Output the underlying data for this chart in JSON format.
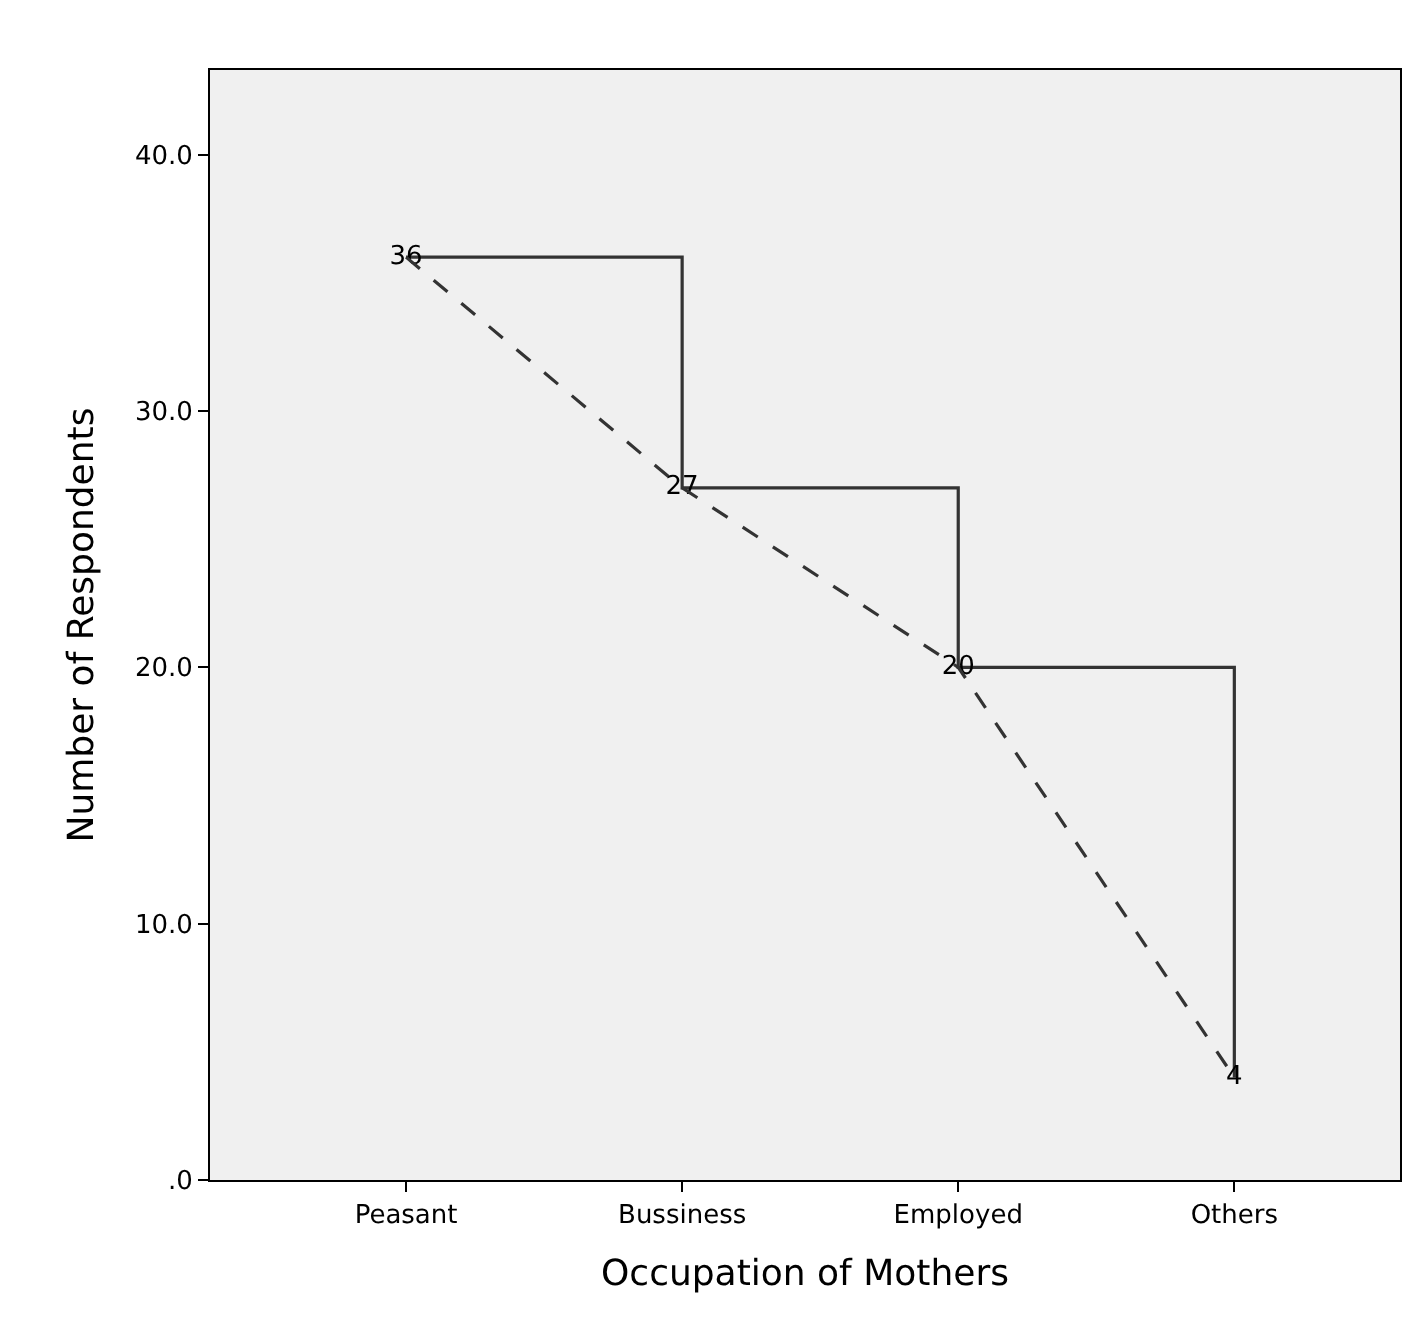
{
  "chart_data": {
    "type": "line",
    "xlabel": "Occupation of Mothers",
    "ylabel": "Number of Respondents",
    "categories": [
      "Peasant",
      "Bussiness",
      "Employed",
      "Others"
    ],
    "series": [
      {
        "type": "step",
        "color": "#333333",
        "line_style": "solid",
        "values": [
          36,
          27,
          20,
          4
        ],
        "value_labels": [
          "36",
          "27",
          "20",
          "4"
        ]
      },
      {
        "color": "#333333",
        "line_style": "dashed",
        "values": [
          36,
          27,
          20,
          4
        ]
      }
    ],
    "ylim": [
      0,
      43.3
    ],
    "yticks": [
      {
        "value": 0,
        "label": ".0"
      },
      {
        "value": 10,
        "label": "10.0"
      },
      {
        "value": 20,
        "label": "20.0"
      },
      {
        "value": 30,
        "label": "30.0"
      },
      {
        "value": 40,
        "label": "40.0"
      }
    ],
    "grid": false,
    "legend": false,
    "marker": "none"
  }
}
